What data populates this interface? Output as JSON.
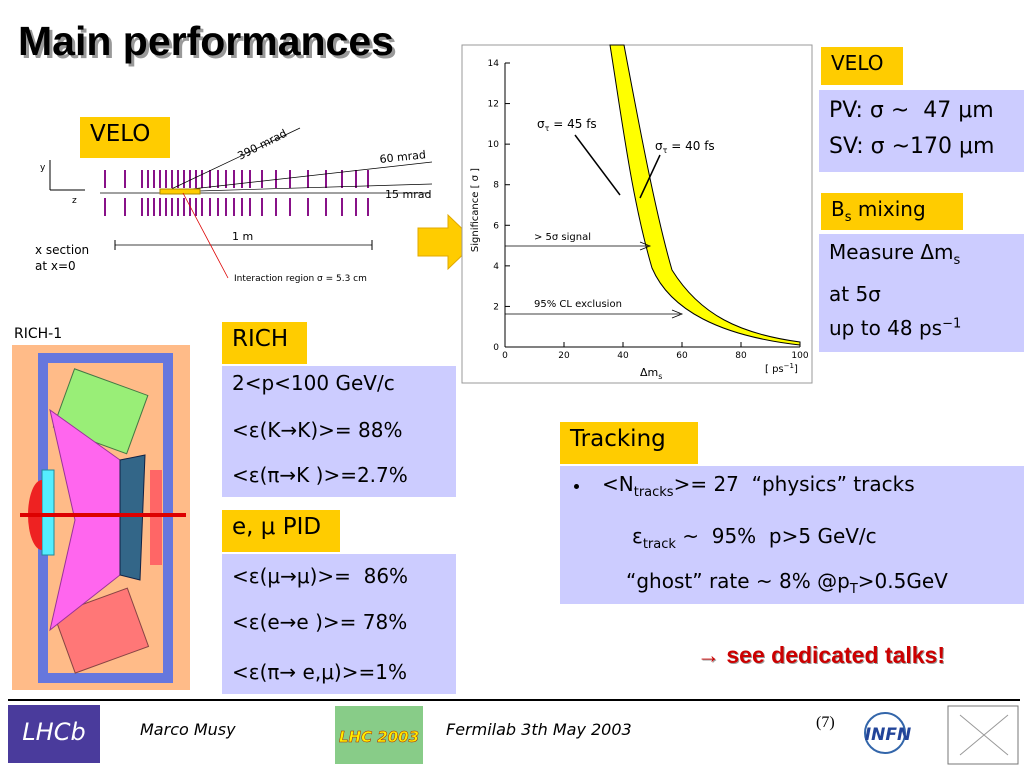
{
  "title": "Main performances",
  "velo_tag": "VELO",
  "velo_diagram": {
    "angle_390": "390 mrad",
    "angle_60": "60 mrad",
    "angle_15": "15 mrad",
    "length": "1 m",
    "x_section": [
      "x section",
      "at x=0"
    ],
    "interaction": "Interaction region   σ = 5.3 cm",
    "axis_y": "y",
    "axis_z": "z"
  },
  "rich1_label": "RICH-1",
  "significance_plot": {
    "type": "line",
    "ylabel": "Significance  [ σ ]",
    "xlabel": [
      "Δm",
      "s"
    ],
    "xunit": [
      "[ ps",
      "−1",
      "]"
    ],
    "xlim": [
      0,
      100
    ],
    "ylim": [
      0,
      14
    ],
    "xticks": [
      0,
      20,
      40,
      60,
      80,
      100
    ],
    "yticks": [
      0,
      2,
      4,
      6,
      8,
      10,
      12,
      14
    ],
    "annotations": {
      "sigma45": [
        "σ",
        "τ",
        " = 45 fs"
      ],
      "sigma40": [
        "σ",
        "τ",
        " = 40 fs"
      ],
      "signal": "> 5σ signal",
      "exclusion": "95% CL exclusion"
    }
  },
  "velo_box": {
    "heading": "VELO",
    "lines": [
      "PV: σ ~  47 μm",
      "SV: σ ~170 μm"
    ]
  },
  "bs_box": {
    "heading": [
      "B",
      "s",
      " mixing"
    ],
    "lines": [
      [
        "Measure Δm",
        "s"
      ],
      "at 5σ",
      [
        "up to 48 ps",
        "−1"
      ]
    ]
  },
  "rich_box": {
    "heading": "RICH",
    "lines": [
      "2<p<100 GeV/c",
      "<ε(K→K)>= 88%",
      "<ε(π→K )>=2.7%"
    ]
  },
  "pid_box": {
    "heading": "e, μ PID",
    "lines": [
      "<ε(μ→μ)>=  86%",
      "<ε(e→e )>= 78%",
      "<ε(π→ e,μ)>=1%"
    ]
  },
  "tracking_box": {
    "heading": "Tracking",
    "lines": [
      [
        "<N",
        "tracks",
        ">= 27  “physics” tracks"
      ],
      [
        "ε",
        "track",
        " ~  95%  p>5 GeV/c"
      ],
      [
        "“ghost” rate ~ 8% @p",
        "T",
        ">0.5GeV"
      ]
    ]
  },
  "callout": "→ see dedicated talks!",
  "footer": {
    "author": "Marco Musy",
    "event": "Fermilab 3th May 2003",
    "page": "(7)",
    "logos": {
      "lhcb": "LHCb",
      "lhc2003": "LHC 2003",
      "infn": "INFN"
    }
  }
}
